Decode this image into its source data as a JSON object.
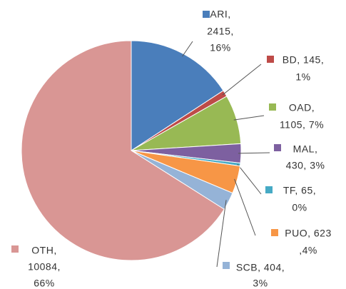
{
  "chart_data": {
    "type": "pie",
    "categories": [
      "ARI",
      "BD",
      "OAD",
      "MAL",
      "TF",
      "PUO",
      "SCB",
      "OTH"
    ],
    "values": [
      2415,
      145,
      1105,
      430,
      65,
      623,
      404,
      10084
    ],
    "value_labels": [
      [
        "ARI,",
        "2415,",
        "16%"
      ],
      [
        "BD, 145,",
        "1%"
      ],
      [
        "OAD,",
        "1105, 7%"
      ],
      [
        "MAL,",
        "430, 3%"
      ],
      [
        "TF, 65,",
        "0%"
      ],
      [
        "PUO, 623",
        ",4%"
      ],
      [
        "SCB, 404,",
        "3%"
      ],
      [
        "OTH,",
        "10084,",
        "66%"
      ]
    ],
    "colors": [
      "#4a7ebb",
      "#be4b48",
      "#98b954",
      "#7d60a0",
      "#46aac5",
      "#f79646",
      "#95b3d7",
      "#d99694"
    ]
  }
}
